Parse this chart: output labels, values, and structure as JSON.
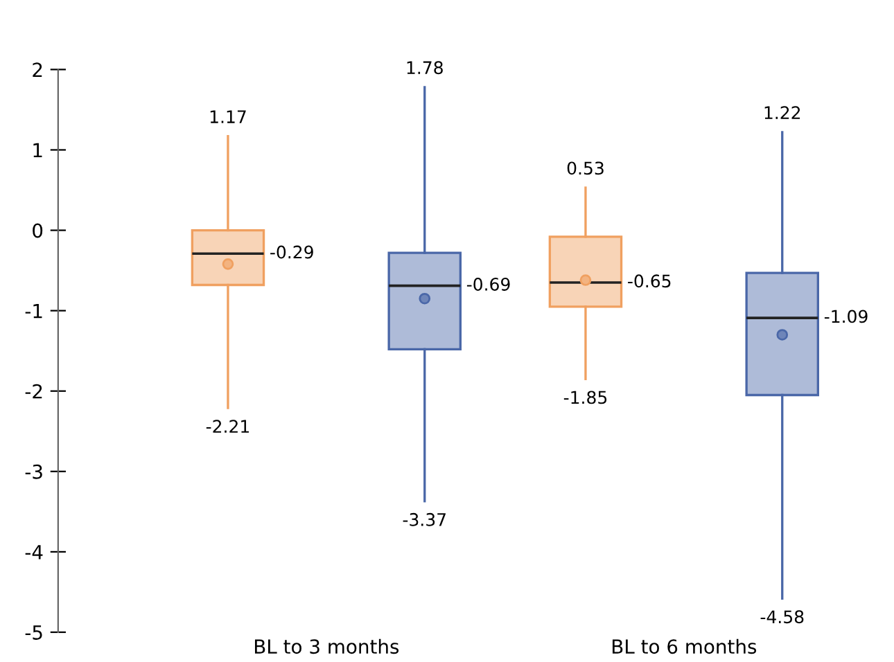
{
  "chart_data": {
    "type": "box",
    "categories": [
      "BL to 3 months",
      "BL to 6 months"
    ],
    "series": [
      {
        "color": "#f0a060",
        "boxes": [
          {
            "low": -2.21,
            "q1": -0.68,
            "median": -0.29,
            "q3": 0.0,
            "high": 1.17,
            "mean": -0.42
          },
          {
            "low": -1.85,
            "q1": -0.95,
            "median": -0.65,
            "q3": -0.08,
            "high": 0.53,
            "mean": -0.62
          }
        ]
      },
      {
        "color": "#4a67a8",
        "boxes": [
          {
            "low": -3.37,
            "q1": -1.48,
            "median": -0.69,
            "q3": -0.28,
            "high": 1.78,
            "mean": -0.85
          },
          {
            "low": -4.58,
            "q1": -2.05,
            "median": -1.09,
            "q3": -0.53,
            "high": 1.22,
            "mean": -1.3
          }
        ]
      }
    ],
    "ylim": [
      -5,
      2
    ],
    "yticks": [
      -5,
      -4,
      -3,
      -2,
      -1,
      0,
      1,
      2
    ],
    "annotations": [
      "1.17",
      "-0.29",
      "-2.21",
      "1.78",
      "-0.69",
      "-3.37",
      "0.53",
      "-0.65",
      "-1.85",
      "1.22",
      "-1.09",
      "-4.58"
    ],
    "grid": false,
    "legend": false
  }
}
